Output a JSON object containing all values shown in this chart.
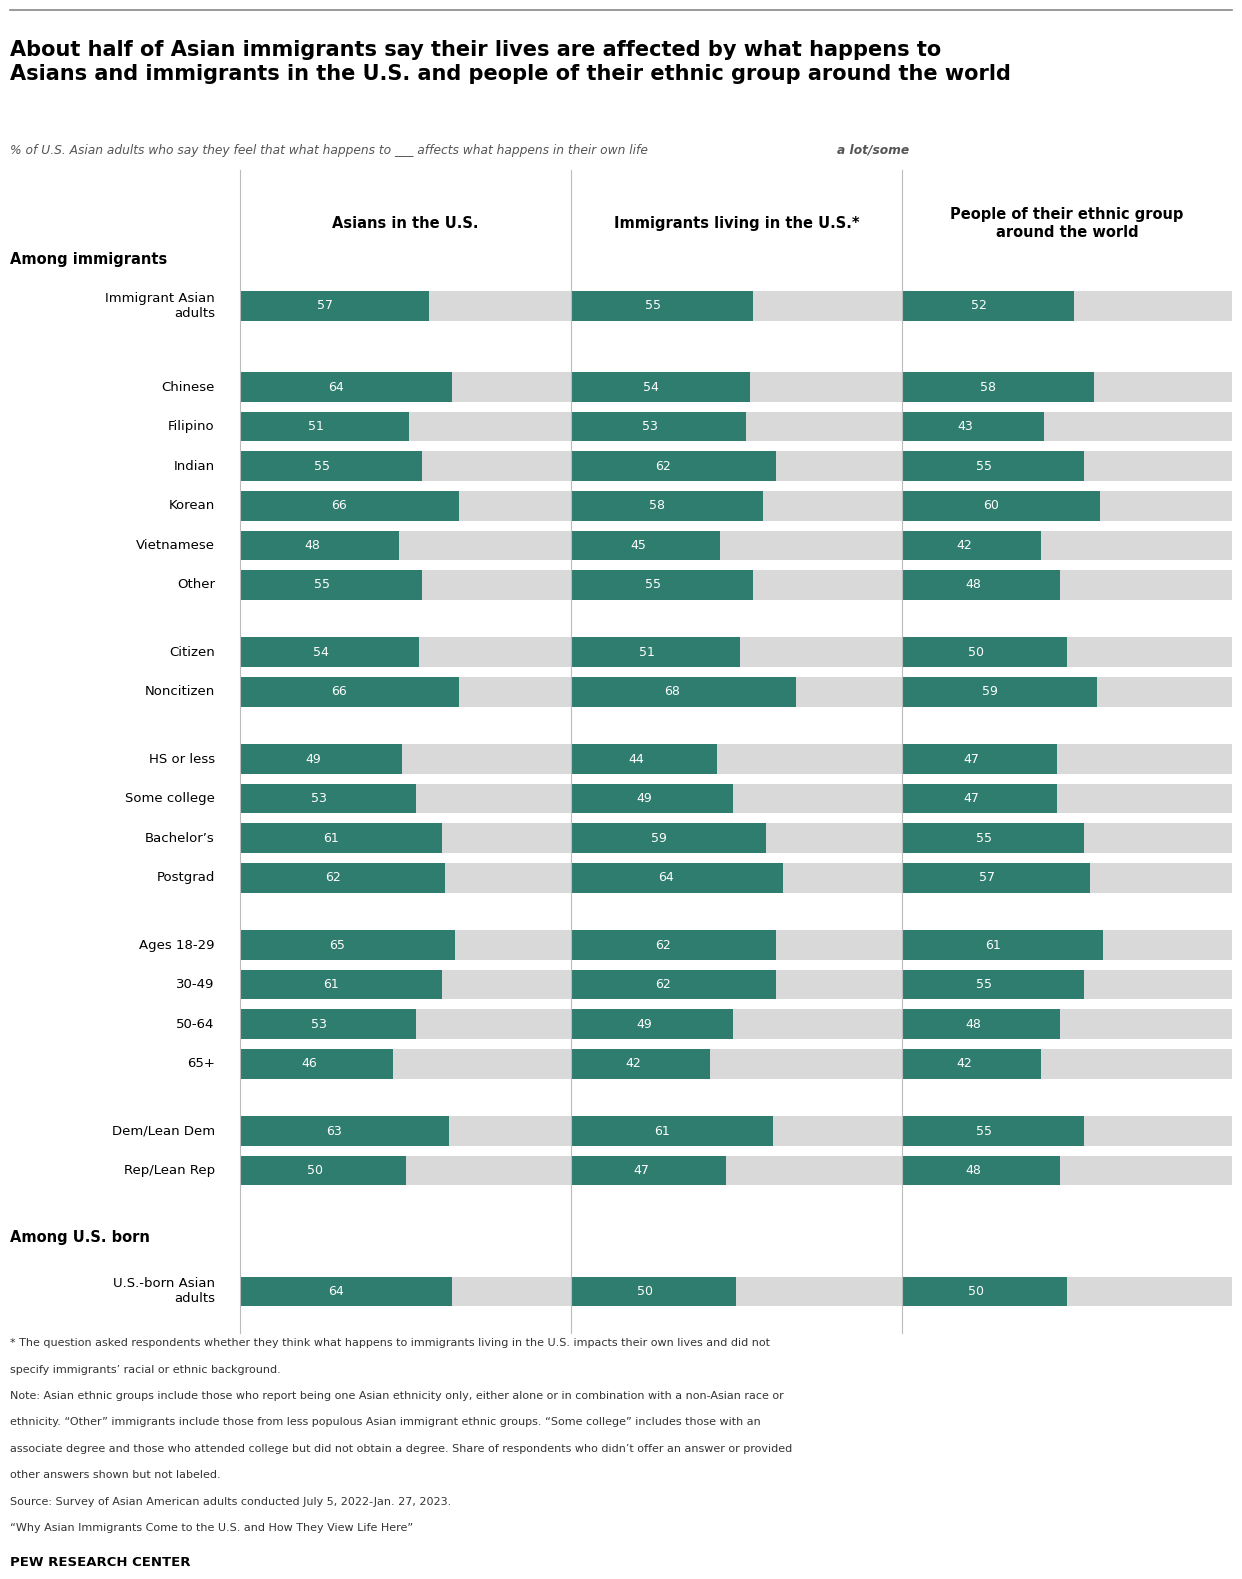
{
  "title_line1": "About half of Asian immigrants say their lives are affected by what happens to",
  "title_line2": "Asians and immigrants in the U.S. and people of their ethnic group around the world",
  "subtitle_regular": "% of U.S. Asian adults who say they feel that what happens to ___ affects what happens in their own life ",
  "subtitle_bold": "a lot/some",
  "col_headers": [
    "Asians in the U.S.",
    "Immigrants living in the U.S.*",
    "People of their ethnic group\naround the world"
  ],
  "categories": [
    "Immigrant Asian\nadults",
    "SPACER_BIG",
    "Chinese",
    "Filipino",
    "Indian",
    "Korean",
    "Vietnamese",
    "Other",
    "SPACER_BIG",
    "Citizen",
    "Noncitizen",
    "SPACER_BIG",
    "HS or less",
    "Some college",
    "Bachelor’s",
    "Postgrad",
    "SPACER_BIG",
    "Ages 18-29",
    "30-49",
    "50-64",
    "65+",
    "SPACER_BIG",
    "Dem/Lean Dem",
    "Rep/Lean Rep"
  ],
  "col1_values": [
    57,
    null,
    64,
    51,
    55,
    66,
    48,
    55,
    null,
    54,
    66,
    null,
    49,
    53,
    61,
    62,
    null,
    65,
    61,
    53,
    46,
    null,
    63,
    50
  ],
  "col2_values": [
    55,
    null,
    54,
    53,
    62,
    58,
    45,
    55,
    null,
    51,
    68,
    null,
    44,
    49,
    59,
    64,
    null,
    62,
    62,
    49,
    42,
    null,
    61,
    47
  ],
  "col3_values": [
    52,
    null,
    58,
    43,
    55,
    60,
    42,
    48,
    null,
    50,
    59,
    null,
    47,
    47,
    55,
    57,
    null,
    61,
    55,
    48,
    42,
    null,
    55,
    48
  ],
  "us_born_label": "U.S.-born Asian\nadults",
  "us_born_col1": 64,
  "us_born_col2": 50,
  "us_born_col3": 50,
  "bar_color": "#2e7d6e",
  "bg_bar_color": "#d9d9d9",
  "footnote_lines": [
    "* The question asked respondents whether they think what happens to immigrants living in the U.S. impacts their own lives and did not",
    "specify immigrants’ racial or ethnic background.",
    "Note: Asian ethnic groups include those who report being one Asian ethnicity only, either alone or in combination with a non-Asian race or",
    "ethnicity. “Other” immigrants include those from less populous Asian immigrant ethnic groups. “Some college” includes those with an",
    "associate degree and those who attended college but did not obtain a degree. Share of respondents who didn’t offer an answer or provided",
    "other answers shown but not labeled.",
    "Source: Survey of Asian American adults conducted July 5, 2022-Jan. 27, 2023.",
    "“Why Asian Immigrants Come to the U.S. and How They View Life Here”"
  ],
  "source_label": "PEW RESEARCH CENTER"
}
